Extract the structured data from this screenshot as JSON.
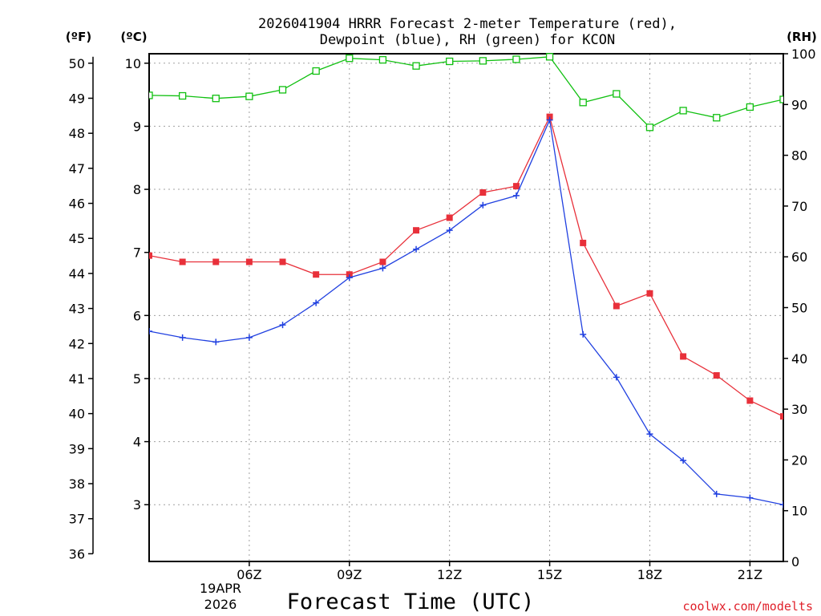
{
  "chart_data": {
    "type": "line",
    "title_line1": "2026041904 HRRR Forecast 2-meter Temperature (red),",
    "title_line2": "Dewpoint (blue), RH (green) for KCON",
    "xlabel": "Forecast Time (UTC)",
    "date_label": [
      "19APR",
      "2026"
    ],
    "credit": "coolwx.com/modelts",
    "units": {
      "fahrenheit": "(ºF)",
      "celsius": "(ºC)",
      "rh": "(RH)"
    },
    "x": [
      3,
      4,
      5,
      6,
      7,
      8,
      9,
      10,
      11,
      12,
      13,
      14,
      15,
      16,
      17,
      18,
      19,
      20,
      21,
      22
    ],
    "xlim": [
      3,
      22
    ],
    "x_ticks": [
      {
        "hour": 6,
        "label": "06Z"
      },
      {
        "hour": 9,
        "label": "09Z"
      },
      {
        "hour": 12,
        "label": "12Z"
      },
      {
        "hour": 15,
        "label": "15Z"
      },
      {
        "hour": 18,
        "label": "18Z"
      },
      {
        "hour": 21,
        "label": "21Z"
      }
    ],
    "celsius_axis": {
      "ylim": [
        2.1,
        10.15
      ],
      "ticks": [
        3,
        4,
        5,
        6,
        7,
        8,
        9,
        10
      ]
    },
    "fahrenheit_ticks": [
      36,
      37,
      38,
      39,
      40,
      41,
      42,
      43,
      44,
      45,
      46,
      47,
      48,
      49,
      50
    ],
    "rh_axis": {
      "ylim": [
        0,
        100
      ],
      "ticks": [
        0,
        10,
        20,
        30,
        40,
        50,
        60,
        70,
        80,
        90,
        100
      ]
    },
    "series": [
      {
        "name": "Temperature",
        "axis": "celsius",
        "color": "#e8303a",
        "marker": "filled-square",
        "values": [
          6.95,
          6.85,
          6.85,
          6.85,
          6.85,
          6.65,
          6.65,
          6.85,
          7.35,
          7.55,
          7.95,
          8.05,
          9.15,
          7.15,
          6.15,
          6.35,
          5.35,
          5.05,
          4.65,
          4.4
        ]
      },
      {
        "name": "Dewpoint",
        "axis": "celsius",
        "color": "#2040e0",
        "marker": "plus",
        "values": [
          5.75,
          5.65,
          5.58,
          5.65,
          5.85,
          6.2,
          6.6,
          6.75,
          7.05,
          7.35,
          7.75,
          7.9,
          9.1,
          5.7,
          5.02,
          4.12,
          3.7,
          3.17,
          3.11,
          3.0
        ]
      },
      {
        "name": "RH",
        "axis": "rh",
        "color": "#10c010",
        "marker": "open-square",
        "values": [
          91.8,
          91.7,
          91.2,
          91.6,
          92.9,
          96.6,
          99.1,
          98.8,
          97.6,
          98.5,
          98.6,
          98.9,
          99.4,
          90.4,
          92.1,
          85.5,
          88.8,
          87.4,
          89.5,
          91.0
        ]
      }
    ]
  }
}
